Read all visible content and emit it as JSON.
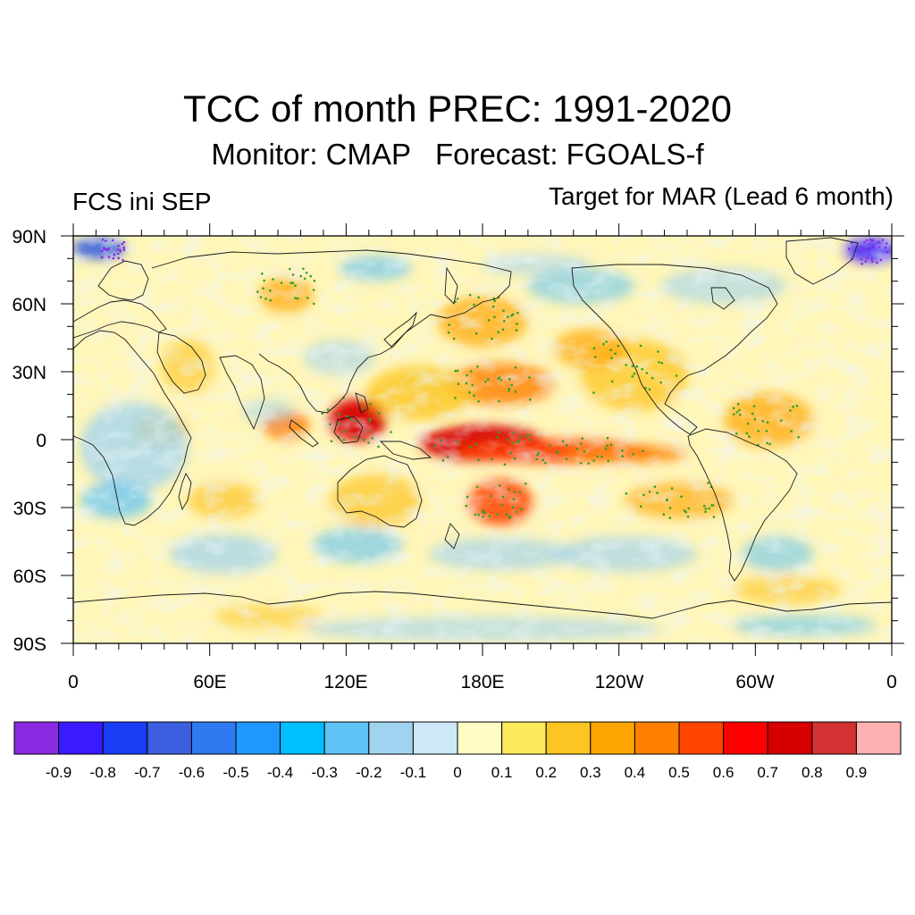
{
  "title": "TCC of month PREC: 1991-2020",
  "subtitle": "Monitor: CMAP   Forecast: FGOALS-f",
  "left_label": "FCS ini SEP",
  "right_label": "Target for MAR (Lead 6 month)",
  "map": {
    "lat_labels": [
      "90N",
      "60N",
      "30N",
      "0",
      "30S",
      "60S",
      "90S"
    ],
    "lon_labels": [
      "0",
      "60E",
      "120E",
      "180E",
      "120W",
      "60W",
      "0"
    ]
  },
  "colorbar": {
    "colors": [
      "#8a2be2",
      "#3a1aff",
      "#1a3cf5",
      "#3c5fe0",
      "#2f7af0",
      "#1e98ff",
      "#00bfff",
      "#5ec3f5",
      "#a0d3f0",
      "#cde9f7",
      "#fffcc4",
      "#fde95c",
      "#fdc521",
      "#ffa500",
      "#ff7f00",
      "#ff4500",
      "#ff0000",
      "#d70000",
      "#d23232",
      "#ffb0b0"
    ],
    "labels": [
      "-0.9",
      "-0.8",
      "-0.7",
      "-0.6",
      "-0.5",
      "-0.4",
      "-0.3",
      "-0.2",
      "-0.1",
      "0",
      "0.1",
      "0.2",
      "0.3",
      "0.4",
      "0.5",
      "0.6",
      "0.7",
      "0.8",
      "0.9"
    ]
  }
}
